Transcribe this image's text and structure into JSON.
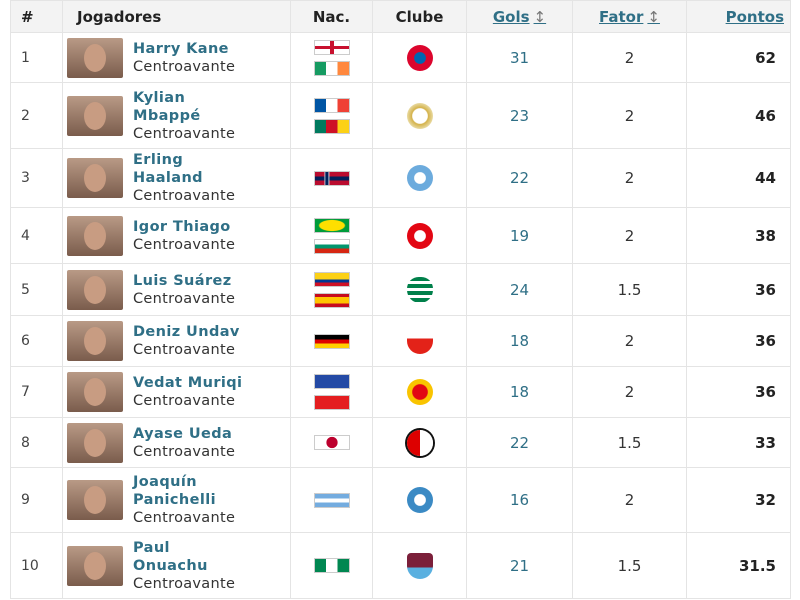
{
  "headers": {
    "rank": "#",
    "players": "Jogadores",
    "nat": "Nac.",
    "club": "Clube",
    "goals": "Gols",
    "factor": "Fator",
    "points": "Pontos",
    "sort_icon": "↕"
  },
  "rows": [
    {
      "rank": "1",
      "name": [
        "Harry Kane"
      ],
      "position": "Centroavante",
      "flags": [
        "england",
        "ireland"
      ],
      "club": "bayern-munich",
      "goals": "31",
      "factor": "2",
      "points": "62"
    },
    {
      "rank": "2",
      "name": [
        "Kylian",
        "Mbappé"
      ],
      "position": "Centroavante",
      "flags": [
        "france",
        "cameroon"
      ],
      "club": "real-madrid",
      "goals": "23",
      "factor": "2",
      "points": "46"
    },
    {
      "rank": "3",
      "name": [
        "Erling",
        "Haaland"
      ],
      "position": "Centroavante",
      "flags": [
        "norway"
      ],
      "club": "manchester-city",
      "goals": "22",
      "factor": "2",
      "points": "44"
    },
    {
      "rank": "4",
      "name": [
        "Igor Thiago"
      ],
      "position": "Centroavante",
      "flags": [
        "brazil",
        "bulgaria"
      ],
      "club": "brentford",
      "goals": "19",
      "factor": "2",
      "points": "38"
    },
    {
      "rank": "5",
      "name": [
        "Luis Suárez"
      ],
      "position": "Centroavante",
      "flags": [
        "colombia",
        "spain"
      ],
      "club": "sporting",
      "goals": "24",
      "factor": "1.5",
      "points": "36"
    },
    {
      "rank": "6",
      "name": [
        "Deniz Undav"
      ],
      "position": "Centroavante",
      "flags": [
        "germany"
      ],
      "club": "stuttgart",
      "goals": "18",
      "factor": "2",
      "points": "36"
    },
    {
      "rank": "7",
      "name": [
        "Vedat Muriqi"
      ],
      "position": "Centroavante",
      "flags": [
        "kosovo",
        "albania"
      ],
      "club": "mallorca",
      "goals": "18",
      "factor": "2",
      "points": "36"
    },
    {
      "rank": "8",
      "name": [
        "Ayase Ueda"
      ],
      "position": "Centroavante",
      "flags": [
        "japan"
      ],
      "club": "feyenoord",
      "goals": "22",
      "factor": "1.5",
      "points": "33"
    },
    {
      "rank": "9",
      "name": [
        "Joaquín",
        "Panichelli"
      ],
      "position": "Centroavante",
      "flags": [
        "argentina"
      ],
      "club": "strasbourg",
      "goals": "16",
      "factor": "2",
      "points": "32"
    },
    {
      "rank": "10",
      "name": [
        "Paul",
        "Onuachu"
      ],
      "position": "Centroavante",
      "flags": [
        "nigeria"
      ],
      "club": "trabzonspor",
      "goals": "21",
      "factor": "1.5",
      "points": "31.5"
    }
  ]
}
